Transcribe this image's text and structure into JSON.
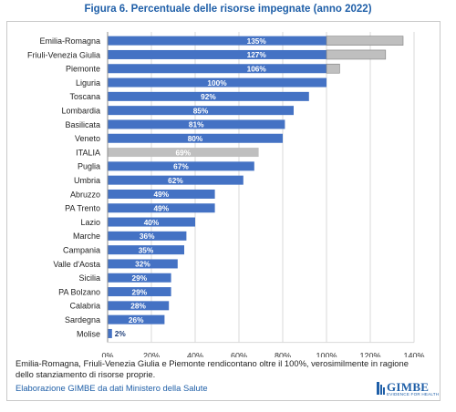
{
  "title": "Figura 6. Percentuale delle risorse impegnate (anno 2022)",
  "note": "Emilia-Romagna, Friuli-Venezia Giulia e Piemonte rendicontano oltre il 100%, verosimilmente in ragione dello stanziamento di risorse proprie.",
  "source": "Elaborazione GIMBE da dati Ministero della Salute",
  "logo": {
    "name": "GIMBE",
    "tagline": "EVIDENCE FOR HEALTH"
  },
  "colors": {
    "bar": "#4472c4",
    "national": "#bfbfbf",
    "excess": "#bfbfbf",
    "accent": "#1f5fa8"
  },
  "chart_data": {
    "type": "bar",
    "orientation": "horizontal",
    "title": "Figura 6. Percentuale delle risorse impegnate (anno 2022)",
    "xlim": [
      0,
      140
    ],
    "xticks": [
      0,
      20,
      40,
      60,
      80,
      100,
      120,
      140
    ],
    "xtick_labels": [
      "0%",
      "20%",
      "40%",
      "60%",
      "80%",
      "100%",
      "120%",
      "140%"
    ],
    "grid": "vertical",
    "categories": [
      "Emilia-Romagna",
      "Friuli-Venezia Giulia",
      "Piemonte",
      "Liguria",
      "Toscana",
      "Lombardia",
      "Basilicata",
      "Veneto",
      "ITALIA",
      "Puglia",
      "Umbria",
      "Abruzzo",
      "PA Trento",
      "Lazio",
      "Marche",
      "Campania",
      "Valle d'Aosta",
      "Sicilia",
      "PA Bolzano",
      "Calabria",
      "Sardegna",
      "Molise"
    ],
    "values": [
      135,
      127,
      106,
      100,
      92,
      85,
      81,
      80,
      69,
      67,
      62,
      49,
      49,
      40,
      36,
      35,
      32,
      29,
      29,
      28,
      26,
      2
    ],
    "labels": [
      "135%",
      "127%",
      "106%",
      "100%",
      "92%",
      "85%",
      "81%",
      "80%",
      "69%",
      "67%",
      "62%",
      "49%",
      "49%",
      "40%",
      "36%",
      "35%",
      "32%",
      "29%",
      "29%",
      "28%",
      "26%",
      "2%"
    ],
    "highlight": "ITALIA",
    "cap": 100
  }
}
